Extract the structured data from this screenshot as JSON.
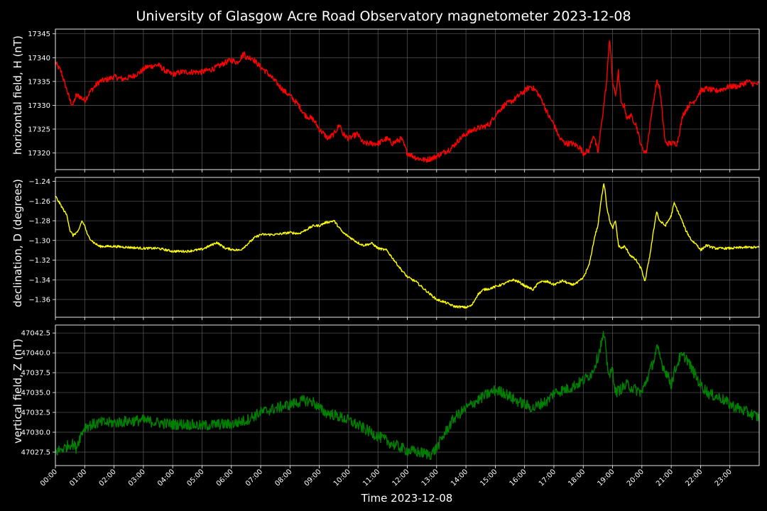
{
  "title": "University of Glasgow Acre Road Observatory magnetometer 2023-12-08",
  "xlabel": "Time 2023-12-08",
  "x_ticks": [
    "00:00",
    "01:00",
    "02:00",
    "03:00",
    "04:00",
    "05:00",
    "06:00",
    "07:00",
    "08:00",
    "09:00",
    "10:00",
    "11:00",
    "12:00",
    "13:00",
    "14:00",
    "15:00",
    "16:00",
    "17:00",
    "18:00",
    "19:00",
    "20:00",
    "21:00",
    "22:00",
    "23:00"
  ],
  "chart_data": [
    {
      "type": "line",
      "ylabel": "horizontal field, H (nT)",
      "color": "#ff0000",
      "xlim": [
        0,
        24
      ],
      "ylim": [
        17316.5,
        17346
      ],
      "yticks": [
        17320,
        17325,
        17330,
        17335,
        17340,
        17345
      ],
      "ytick_labels": [
        "17320",
        "17325",
        "17330",
        "17335",
        "17340",
        "17345"
      ],
      "grid": true,
      "noise": 0.6,
      "series": [
        {
          "x": [
            0,
            0.2,
            0.35,
            0.5,
            0.6,
            0.7,
            0.8,
            1.0,
            1.2,
            1.5,
            1.8,
            2.0,
            2.3,
            2.6,
            2.9,
            3.1,
            3.5,
            3.8,
            4.0,
            4.3,
            4.6,
            5.0,
            5.3,
            5.5,
            5.8,
            6.0,
            6.2,
            6.45,
            6.5,
            6.7,
            7.0,
            7.2,
            7.5,
            7.8,
            8.0,
            8.3,
            8.5,
            8.8,
            9.0,
            9.3,
            9.5,
            9.7,
            9.8,
            10.0,
            10.3,
            10.5,
            10.8,
            11.0,
            11.3,
            11.5,
            11.8,
            12.0,
            12.3,
            12.6,
            12.9,
            13.2,
            13.5,
            13.8,
            14.0,
            14.3,
            14.6,
            14.8,
            15.0,
            15.3,
            15.6,
            15.8,
            16.0,
            16.2,
            16.4,
            16.6,
            16.8,
            17.0,
            17.2,
            17.4,
            17.6,
            17.8,
            17.9,
            18.0,
            18.2,
            18.35,
            18.5,
            18.7,
            18.8,
            18.9,
            19.0,
            19.1,
            19.2,
            19.3,
            19.4,
            19.5,
            19.6,
            19.8,
            20.0,
            20.15,
            20.3,
            20.4,
            20.5,
            20.6,
            20.8,
            20.9,
            21.0,
            21.2,
            21.4,
            21.6,
            21.8,
            22.0,
            22.2,
            22.5,
            22.8,
            23.0,
            23.3,
            23.6,
            23.8,
            24.0
          ],
          "y": [
            17339,
            17337,
            17334,
            17331,
            17330,
            17332,
            17332,
            17331,
            17333,
            17335,
            17335.5,
            17336,
            17335.5,
            17336,
            17337,
            17338,
            17338.5,
            17337,
            17336.5,
            17337,
            17337,
            17337,
            17337.5,
            17338,
            17339,
            17339.5,
            17339,
            17341,
            17340,
            17340,
            17338,
            17337,
            17335,
            17333,
            17332,
            17330,
            17328,
            17327,
            17325,
            17323,
            17324,
            17326,
            17324,
            17323,
            17324,
            17322,
            17322,
            17322,
            17323,
            17322,
            17323,
            17320,
            17319,
            17318.5,
            17319,
            17320,
            17321,
            17323,
            17324,
            17325,
            17325.5,
            17326,
            17328,
            17330,
            17331,
            17332,
            17333,
            17334,
            17333,
            17331,
            17328,
            17326,
            17323,
            17322,
            17322,
            17321.5,
            17321,
            17320,
            17320.5,
            17324,
            17320,
            17330,
            17335,
            17344.5,
            17335,
            17332,
            17337,
            17330,
            17330,
            17327,
            17328,
            17326,
            17321,
            17320,
            17327,
            17331,
            17335,
            17334,
            17322,
            17322,
            17322,
            17322,
            17328,
            17330,
            17331,
            17333,
            17333.5,
            17333,
            17333.5,
            17334,
            17334,
            17335,
            17334.5,
            17334.5
          ]
        }
      ]
    },
    {
      "type": "line",
      "ylabel": "declination, D (degrees)",
      "color": "#ffff00",
      "xlim": [
        0,
        24
      ],
      "ylim": [
        -1.378,
        -1.236
      ],
      "yticks": [
        -1.36,
        -1.34,
        -1.32,
        -1.3,
        -1.28,
        -1.26,
        -1.24
      ],
      "ytick_labels": [
        "−1.36",
        "−1.34",
        "−1.32",
        "−1.30",
        "−1.28",
        "−1.26",
        "−1.24"
      ],
      "grid": true,
      "noise": 0.0012,
      "series": [
        {
          "x": [
            0,
            0.2,
            0.4,
            0.5,
            0.6,
            0.8,
            0.9,
            1.0,
            1.1,
            1.3,
            1.5,
            2.0,
            2.5,
            3.0,
            3.5,
            4.0,
            4.5,
            5.0,
            5.3,
            5.5,
            5.8,
            6.0,
            6.3,
            6.5,
            6.8,
            7.0,
            7.5,
            8.0,
            8.3,
            8.5,
            8.8,
            9.0,
            9.2,
            9.5,
            9.8,
            10.0,
            10.3,
            10.5,
            10.8,
            11.0,
            11.3,
            11.5,
            11.8,
            12.0,
            12.3,
            12.6,
            13.0,
            13.3,
            13.6,
            14.0,
            14.2,
            14.4,
            14.6,
            14.8,
            15.0,
            15.3,
            15.6,
            15.8,
            16.0,
            16.3,
            16.5,
            16.8,
            17.0,
            17.3,
            17.6,
            17.8,
            18.0,
            18.2,
            18.4,
            18.5,
            18.6,
            18.7,
            18.75,
            18.8,
            18.9,
            19.0,
            19.1,
            19.2,
            19.3,
            19.4,
            19.5,
            19.6,
            19.8,
            20.0,
            20.1,
            20.3,
            20.5,
            20.6,
            20.8,
            20.9,
            21.0,
            21.1,
            21.3,
            21.5,
            21.7,
            21.9,
            22.0,
            22.2,
            22.5,
            23.0,
            23.5,
            24.0
          ],
          "y": [
            -1.255,
            -1.265,
            -1.275,
            -1.29,
            -1.295,
            -1.29,
            -1.28,
            -1.285,
            -1.295,
            -1.302,
            -1.306,
            -1.306,
            -1.307,
            -1.308,
            -1.308,
            -1.311,
            -1.311,
            -1.309,
            -1.305,
            -1.302,
            -1.308,
            -1.309,
            -1.31,
            -1.305,
            -1.297,
            -1.294,
            -1.294,
            -1.292,
            -1.293,
            -1.29,
            -1.285,
            -1.285,
            -1.282,
            -1.28,
            -1.292,
            -1.296,
            -1.302,
            -1.305,
            -1.303,
            -1.308,
            -1.31,
            -1.318,
            -1.33,
            -1.337,
            -1.342,
            -1.35,
            -1.36,
            -1.363,
            -1.367,
            -1.368,
            -1.366,
            -1.355,
            -1.35,
            -1.349,
            -1.347,
            -1.344,
            -1.34,
            -1.342,
            -1.346,
            -1.35,
            -1.342,
            -1.342,
            -1.345,
            -1.341,
            -1.345,
            -1.343,
            -1.338,
            -1.325,
            -1.295,
            -1.285,
            -1.262,
            -1.241,
            -1.25,
            -1.265,
            -1.28,
            -1.288,
            -1.28,
            -1.305,
            -1.308,
            -1.306,
            -1.31,
            -1.315,
            -1.32,
            -1.33,
            -1.343,
            -1.31,
            -1.27,
            -1.28,
            -1.285,
            -1.28,
            -1.275,
            -1.262,
            -1.275,
            -1.29,
            -1.3,
            -1.305,
            -1.31,
            -1.305,
            -1.308,
            -1.308,
            -1.307,
            -1.307
          ]
        }
      ]
    },
    {
      "type": "line",
      "ylabel": "vertical field, Z (nT)",
      "color": "#008000",
      "xlim": [
        0,
        24
      ],
      "ylim": [
        47025.8,
        47043.5
      ],
      "yticks": [
        47027.5,
        47030.0,
        47032.5,
        47035.0,
        47037.5,
        47040.0,
        47042.5
      ],
      "ytick_labels": [
        "47027.5",
        "47030.0",
        "47032.5",
        "47035.0",
        "47037.5",
        "47040.0",
        "47042.5"
      ],
      "grid": true,
      "noise": 0.7,
      "series": [
        {
          "x": [
            0,
            0.3,
            0.5,
            0.6,
            0.7,
            0.85,
            1.0,
            1.5,
            2.0,
            2.5,
            3.0,
            3.5,
            4.0,
            4.5,
            5.0,
            5.5,
            6.0,
            6.5,
            7.0,
            7.5,
            8.0,
            8.5,
            8.8,
            9.0,
            9.2,
            9.5,
            10.0,
            10.5,
            11.0,
            11.5,
            12.0,
            12.5,
            12.8,
            13.0,
            13.3,
            13.6,
            14.0,
            14.3,
            14.6,
            15.0,
            15.3,
            15.6,
            16.0,
            16.3,
            16.5,
            16.8,
            17.0,
            17.5,
            18.0,
            18.3,
            18.5,
            18.6,
            18.7,
            18.75,
            18.8,
            18.9,
            19.0,
            19.1,
            19.3,
            19.5,
            19.7,
            20.0,
            20.2,
            20.4,
            20.5,
            20.55,
            20.7,
            20.9,
            21.0,
            21.1,
            21.3,
            21.5,
            21.7,
            22.0,
            22.3,
            22.7,
            23.0,
            23.3,
            23.6,
            23.8,
            24.0
          ],
          "y": [
            47027.5,
            47028,
            47028.5,
            47028.5,
            47028,
            47029.5,
            47030.7,
            47031.2,
            47031.2,
            47031.4,
            47031.5,
            47031.2,
            47031,
            47031,
            47030.8,
            47031,
            47031,
            47031.5,
            47032.5,
            47033,
            47033.5,
            47034,
            47033.8,
            47033,
            47032.5,
            47032.2,
            47031.5,
            47030.5,
            47029.5,
            47028.5,
            47027.7,
            47027.4,
            47027.2,
            47028,
            47030,
            47031.8,
            47033,
            47033.8,
            47034.5,
            47035.3,
            47035,
            47034.2,
            47033.5,
            47033,
            47033.5,
            47034,
            47035,
            47035.5,
            47036.5,
            47037.5,
            47039.5,
            47041,
            47042.3,
            47041,
            47039,
            47037,
            47038,
            47035,
            47035.5,
            47036,
            47035.5,
            47035,
            47037,
            47039,
            47040.5,
            47040.3,
            47038.5,
            47037,
            47036,
            47037.5,
            47039.5,
            47039.5,
            47038,
            47036,
            47034.8,
            47034.3,
            47033.5,
            47033,
            47032.5,
            47032.2,
            47031.8
          ]
        }
      ]
    }
  ]
}
